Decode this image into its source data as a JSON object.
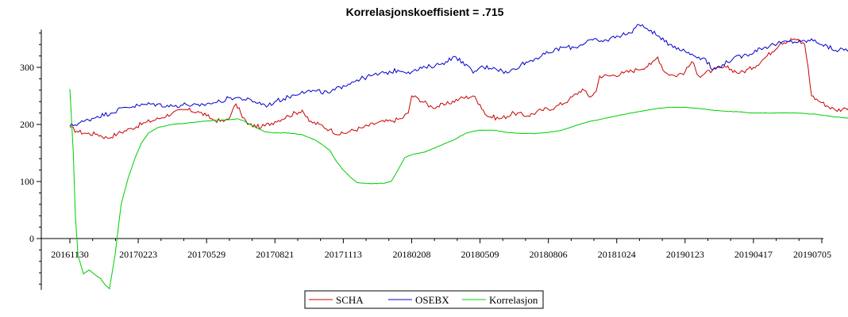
{
  "chart_data": {
    "type": "line",
    "title": "Korrelasjonskoeffisient =  .715",
    "xlabel": "",
    "ylabel": "",
    "ylim": [
      -90,
      380
    ],
    "y_ticks": [
      0,
      100,
      200,
      300
    ],
    "x_ticks": [
      "20161130",
      "20170223",
      "20170529",
      "20170821",
      "20171113",
      "20180208",
      "20180509",
      "20180806",
      "20181024",
      "20190123",
      "20190417",
      "20190705"
    ],
    "x_range": [
      0,
      11.5
    ],
    "grid": false,
    "legend_position": "bottom-center",
    "series": [
      {
        "name": "SCHA",
        "color": "#cc0000",
        "points": [
          [
            0.0,
            195
          ],
          [
            0.1,
            188
          ],
          [
            0.25,
            184
          ],
          [
            0.4,
            183
          ],
          [
            0.55,
            176
          ],
          [
            0.7,
            184
          ],
          [
            0.9,
            193
          ],
          [
            1.1,
            203
          ],
          [
            1.3,
            210
          ],
          [
            1.5,
            220
          ],
          [
            1.7,
            226
          ],
          [
            1.9,
            221
          ],
          [
            2.0,
            215
          ],
          [
            2.1,
            208
          ],
          [
            2.25,
            205
          ],
          [
            2.35,
            215
          ],
          [
            2.43,
            236
          ],
          [
            2.5,
            220
          ],
          [
            2.6,
            200
          ],
          [
            2.8,
            195
          ],
          [
            3.0,
            205
          ],
          [
            3.2,
            215
          ],
          [
            3.4,
            225
          ],
          [
            3.5,
            205
          ],
          [
            3.65,
            200
          ],
          [
            3.8,
            191
          ],
          [
            3.95,
            182
          ],
          [
            4.1,
            188
          ],
          [
            4.3,
            195
          ],
          [
            4.5,
            203
          ],
          [
            4.7,
            206
          ],
          [
            4.85,
            210
          ],
          [
            4.95,
            220
          ],
          [
            5.0,
            250
          ],
          [
            5.1,
            245
          ],
          [
            5.3,
            230
          ],
          [
            5.5,
            235
          ],
          [
            5.7,
            245
          ],
          [
            5.9,
            250
          ],
          [
            6.0,
            235
          ],
          [
            6.1,
            215
          ],
          [
            6.3,
            210
          ],
          [
            6.5,
            220
          ],
          [
            6.7,
            215
          ],
          [
            6.9,
            225
          ],
          [
            7.1,
            230
          ],
          [
            7.3,
            243
          ],
          [
            7.5,
            262
          ],
          [
            7.6,
            248
          ],
          [
            7.7,
            258
          ],
          [
            7.75,
            285
          ],
          [
            7.9,
            285
          ],
          [
            8.1,
            290
          ],
          [
            8.3,
            296
          ],
          [
            8.5,
            305
          ],
          [
            8.6,
            318
          ],
          [
            8.7,
            292
          ],
          [
            8.85,
            285
          ],
          [
            9.0,
            292
          ],
          [
            9.1,
            310
          ],
          [
            9.2,
            285
          ],
          [
            9.4,
            295
          ],
          [
            9.6,
            300
          ],
          [
            9.8,
            290
          ],
          [
            10.0,
            300
          ],
          [
            10.2,
            320
          ],
          [
            10.4,
            343
          ],
          [
            10.6,
            350
          ],
          [
            10.75,
            340
          ],
          [
            10.8,
            300
          ],
          [
            10.85,
            250
          ],
          [
            11.0,
            238
          ],
          [
            11.2,
            225
          ],
          [
            11.35,
            228
          ],
          [
            11.5,
            238
          ]
        ]
      },
      {
        "name": "OSEBX",
        "color": "#0000cc",
        "points": [
          [
            0.0,
            197
          ],
          [
            0.2,
            205
          ],
          [
            0.4,
            214
          ],
          [
            0.6,
            220
          ],
          [
            0.8,
            230
          ],
          [
            1.0,
            233
          ],
          [
            1.2,
            236
          ],
          [
            1.5,
            232
          ],
          [
            1.7,
            235
          ],
          [
            1.9,
            232
          ],
          [
            2.0,
            236
          ],
          [
            2.2,
            240
          ],
          [
            2.35,
            247
          ],
          [
            2.5,
            246
          ],
          [
            2.7,
            240
          ],
          [
            2.9,
            233
          ],
          [
            3.0,
            240
          ],
          [
            3.2,
            248
          ],
          [
            3.4,
            258
          ],
          [
            3.6,
            258
          ],
          [
            3.8,
            255
          ],
          [
            4.0,
            268
          ],
          [
            4.2,
            278
          ],
          [
            4.4,
            285
          ],
          [
            4.6,
            290
          ],
          [
            4.8,
            295
          ],
          [
            5.0,
            292
          ],
          [
            5.2,
            300
          ],
          [
            5.4,
            305
          ],
          [
            5.5,
            310
          ],
          [
            5.6,
            318
          ],
          [
            5.75,
            310
          ],
          [
            5.9,
            290
          ],
          [
            6.0,
            300
          ],
          [
            6.2,
            300
          ],
          [
            6.4,
            290
          ],
          [
            6.6,
            305
          ],
          [
            6.8,
            315
          ],
          [
            7.0,
            325
          ],
          [
            7.2,
            335
          ],
          [
            7.4,
            335
          ],
          [
            7.6,
            348
          ],
          [
            7.8,
            345
          ],
          [
            8.0,
            355
          ],
          [
            8.2,
            360
          ],
          [
            8.3,
            375
          ],
          [
            8.4,
            370
          ],
          [
            8.5,
            365
          ],
          [
            8.6,
            355
          ],
          [
            8.7,
            345
          ],
          [
            8.8,
            340
          ],
          [
            9.0,
            328
          ],
          [
            9.2,
            318
          ],
          [
            9.3,
            315
          ],
          [
            9.4,
            295
          ],
          [
            9.55,
            305
          ],
          [
            9.7,
            315
          ],
          [
            9.9,
            322
          ],
          [
            10.1,
            333
          ],
          [
            10.3,
            340
          ],
          [
            10.5,
            345
          ],
          [
            10.7,
            345
          ],
          [
            10.9,
            348
          ],
          [
            11.0,
            340
          ],
          [
            11.2,
            330
          ],
          [
            11.4,
            332
          ],
          [
            11.5,
            343
          ]
        ]
      },
      {
        "name": "Korrelasjon",
        "color": "#00cc00",
        "points": [
          [
            0.0,
            262
          ],
          [
            0.05,
            150
          ],
          [
            0.08,
            40
          ],
          [
            0.12,
            -30
          ],
          [
            0.2,
            -62
          ],
          [
            0.28,
            -55
          ],
          [
            0.35,
            -62
          ],
          [
            0.45,
            -70
          ],
          [
            0.52,
            -82
          ],
          [
            0.58,
            -88
          ],
          [
            0.66,
            -30
          ],
          [
            0.75,
            60
          ],
          [
            0.85,
            105
          ],
          [
            0.95,
            140
          ],
          [
            1.05,
            168
          ],
          [
            1.15,
            185
          ],
          [
            1.3,
            195
          ],
          [
            1.5,
            200
          ],
          [
            1.7,
            202
          ],
          [
            1.9,
            205
          ],
          [
            2.1,
            207
          ],
          [
            2.3,
            208
          ],
          [
            2.45,
            210
          ],
          [
            2.55,
            206
          ],
          [
            2.7,
            196
          ],
          [
            2.85,
            187
          ],
          [
            3.0,
            185
          ],
          [
            3.2,
            185
          ],
          [
            3.4,
            182
          ],
          [
            3.6,
            172
          ],
          [
            3.8,
            155
          ],
          [
            3.9,
            135
          ],
          [
            4.0,
            120
          ],
          [
            4.1,
            108
          ],
          [
            4.2,
            98
          ],
          [
            4.4,
            96
          ],
          [
            4.6,
            97
          ],
          [
            4.7,
            100
          ],
          [
            4.8,
            120
          ],
          [
            4.9,
            142
          ],
          [
            5.0,
            147
          ],
          [
            5.2,
            152
          ],
          [
            5.4,
            162
          ],
          [
            5.6,
            172
          ],
          [
            5.8,
            185
          ],
          [
            6.0,
            190
          ],
          [
            6.2,
            190
          ],
          [
            6.4,
            186
          ],
          [
            6.6,
            184
          ],
          [
            6.8,
            184
          ],
          [
            7.0,
            186
          ],
          [
            7.2,
            190
          ],
          [
            7.4,
            198
          ],
          [
            7.6,
            205
          ],
          [
            7.8,
            210
          ],
          [
            8.0,
            215
          ],
          [
            8.2,
            220
          ],
          [
            8.4,
            224
          ],
          [
            8.6,
            228
          ],
          [
            8.8,
            230
          ],
          [
            9.0,
            230
          ],
          [
            9.2,
            228
          ],
          [
            9.4,
            225
          ],
          [
            9.6,
            223
          ],
          [
            9.8,
            222
          ],
          [
            10.0,
            220
          ],
          [
            10.3,
            220
          ],
          [
            10.6,
            220
          ],
          [
            10.9,
            218
          ],
          [
            11.2,
            213
          ],
          [
            11.5,
            210
          ]
        ]
      }
    ]
  }
}
